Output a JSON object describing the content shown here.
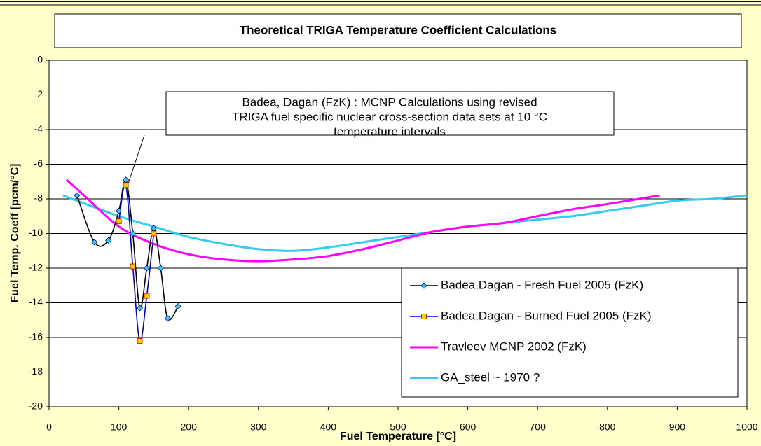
{
  "chart_data": {
    "type": "line",
    "title": "Theoretical  TRIGA Temperature Coefficient Calculations",
    "xlabel": "Fuel Temperature [°C]",
    "ylabel": "Fuel Temp. Coeff   [pcm/°C]",
    "annotation": [
      "Badea, Dagan (FzK) :  MCNP Calculations using revised",
      "TRIGA fuel specific nuclear cross-section data sets at 10 °C",
      "temperature intervals"
    ],
    "xlim": [
      0,
      1000
    ],
    "xticks": [
      0,
      100,
      200,
      300,
      400,
      500,
      600,
      700,
      800,
      900,
      1000
    ],
    "ylim": [
      -20,
      0
    ],
    "yticks": [
      0,
      -2,
      -4,
      -6,
      -8,
      -10,
      -12,
      -14,
      -16,
      -18,
      -20
    ],
    "grid": true,
    "legend": "lower right",
    "series": [
      {
        "name": "Badea,Dagan - Fresh Fuel 2005 (FzK)",
        "color": "#000000",
        "marker_color": "#33ccff",
        "x": [
          40,
          65,
          85,
          100,
          110,
          120,
          130,
          140,
          150,
          160,
          170,
          185
        ],
        "values": [
          -7.8,
          -10.5,
          -10.4,
          -8.7,
          -6.9,
          -10.0,
          -14.3,
          -12.0,
          -9.7,
          -12.0,
          -14.9,
          -14.2
        ]
      },
      {
        "name": "Badea,Dagan - Burned Fuel 2005 (FzK)",
        "color": "#0000cc",
        "marker_color": "#ffcc00",
        "x": [
          100,
          110,
          120,
          130,
          140,
          150
        ],
        "values": [
          -9.3,
          -7.2,
          -11.9,
          -16.2,
          -13.6,
          -10.0
        ]
      },
      {
        "name": "Travleev MCNP 2002 (FzK)",
        "color": "#ff00ff",
        "x": [
          25,
          50,
          100,
          150,
          200,
          250,
          300,
          350,
          400,
          450,
          500,
          550,
          600,
          650,
          700,
          750,
          800,
          875
        ],
        "values": [
          -6.9,
          -7.8,
          -9.6,
          -10.6,
          -11.2,
          -11.5,
          -11.6,
          -11.5,
          -11.3,
          -10.9,
          -10.4,
          -9.9,
          -9.6,
          -9.4,
          -9.0,
          -8.6,
          -8.3,
          -7.8
        ]
      },
      {
        "name": "GA_steel ~ 1970 ?",
        "color": "#33ccee",
        "x": [
          20,
          100,
          150,
          200,
          250,
          300,
          350,
          400,
          450,
          500,
          550,
          600,
          650,
          700,
          750,
          800,
          850,
          900,
          950,
          1000
        ],
        "values": [
          -7.8,
          -9.0,
          -9.6,
          -10.2,
          -10.6,
          -10.9,
          -11.0,
          -10.8,
          -10.5,
          -10.2,
          -9.9,
          -9.6,
          -9.4,
          -9.2,
          -9.0,
          -8.7,
          -8.4,
          -8.1,
          -8.0,
          -7.8
        ]
      }
    ]
  }
}
